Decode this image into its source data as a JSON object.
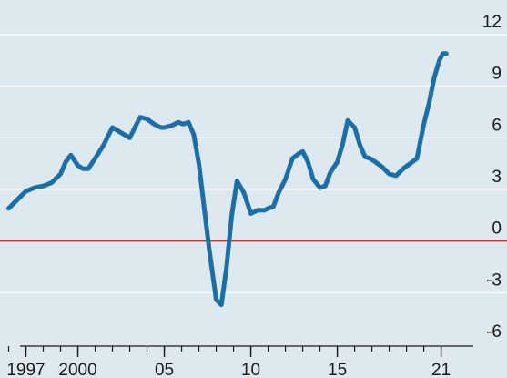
{
  "chart_data": {
    "type": "line",
    "title": "",
    "xlabel": "",
    "ylabel": "",
    "xlim": [
      1995.5,
      2022.6
    ],
    "ylim": [
      -6,
      12
    ],
    "y_ticks": [
      -6,
      -3,
      0,
      3,
      6,
      9,
      12
    ],
    "y_tick_labels": [
      "-6",
      "-3",
      "0",
      "3",
      "6",
      "9",
      "12"
    ],
    "x_tick_labels": [
      {
        "value": 1997,
        "label": "1997"
      },
      {
        "value": 2000,
        "label": "2000"
      },
      {
        "value": 2005,
        "label": "05"
      },
      {
        "value": 2010,
        "label": "10"
      },
      {
        "value": 2015,
        "label": "15"
      },
      {
        "value": 2021,
        "label": "21"
      }
    ],
    "x_minor_ticks": [
      1996,
      1997,
      1998,
      1999,
      2000,
      2001,
      2002,
      2003,
      2004,
      2005,
      2006,
      2007,
      2008,
      2009,
      2010,
      2011,
      2012,
      2013,
      2014,
      2015,
      2016,
      2017,
      2018,
      2019,
      2020,
      2021
    ],
    "grid": true,
    "reference_line": {
      "y": 0,
      "color": "#c0392b"
    },
    "colors": {
      "background": "#dde8ef",
      "grid": "#ffffff",
      "line": "#1a6fa8",
      "axis": "#1a1a1a"
    },
    "series": [
      {
        "name": "",
        "x": [
          1996.0,
          1996.5,
          1997.0,
          1997.5,
          1998.0,
          1998.5,
          1999.0,
          1999.3,
          1999.6,
          2000.0,
          2000.3,
          2000.6,
          2001.0,
          2001.5,
          2002.0,
          2002.5,
          2003.0,
          2003.3,
          2003.6,
          2004.0,
          2004.4,
          2004.8,
          2005.0,
          2005.4,
          2005.8,
          2006.1,
          2006.4,
          2006.7,
          2007.0,
          2007.3,
          2007.6,
          2008.0,
          2008.3,
          2008.6,
          2008.9,
          2009.2,
          2009.6,
          2010.0,
          2010.4,
          2010.8,
          2011.0,
          2011.3,
          2011.6,
          2012.0,
          2012.4,
          2012.8,
          2013.0,
          2013.3,
          2013.6,
          2014.0,
          2014.3,
          2014.6,
          2015.0,
          2015.3,
          2015.6,
          2016.0,
          2016.3,
          2016.6,
          2016.9,
          2017.2,
          2017.6,
          2018.0,
          2018.4,
          2018.8,
          2019.2,
          2019.6,
          2020.0,
          2020.3,
          2020.6,
          2020.9,
          2021.1,
          2021.3
        ],
        "values": [
          1.9,
          2.4,
          2.9,
          3.1,
          3.2,
          3.4,
          3.9,
          4.6,
          5.0,
          4.4,
          4.2,
          4.2,
          4.8,
          5.6,
          6.6,
          6.3,
          6.0,
          6.6,
          7.2,
          7.1,
          6.8,
          6.6,
          6.6,
          6.7,
          6.9,
          6.8,
          6.9,
          6.2,
          4.5,
          2.0,
          -0.5,
          -3.4,
          -3.7,
          -1.5,
          1.5,
          3.5,
          2.8,
          1.6,
          1.8,
          1.8,
          1.9,
          2.0,
          2.8,
          3.6,
          4.8,
          5.1,
          5.2,
          4.6,
          3.6,
          3.1,
          3.2,
          4.0,
          4.6,
          5.6,
          7.0,
          6.6,
          5.6,
          4.9,
          4.8,
          4.6,
          4.3,
          3.9,
          3.8,
          4.2,
          4.5,
          4.8,
          6.8,
          8.0,
          9.5,
          10.5,
          10.9,
          10.9
        ]
      }
    ]
  }
}
